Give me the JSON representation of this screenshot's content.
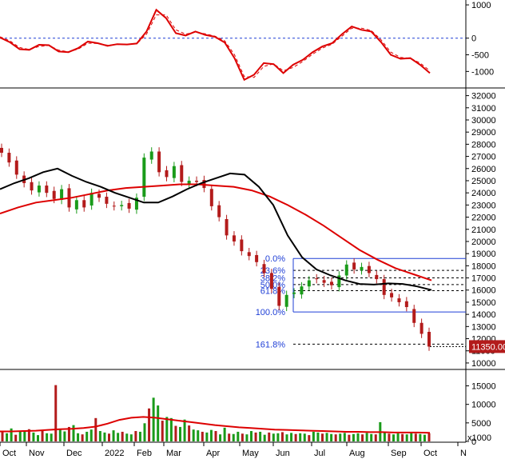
{
  "chart_data": [
    {
      "panel": "oscillator",
      "type": "line",
      "y_ticks": [
        1000,
        0,
        -500,
        -1000
      ],
      "y_tick_labels": [
        "1000",
        "0",
        "-500",
        "-1000"
      ],
      "ylim": [
        -1400,
        1050
      ],
      "zero_line": 0,
      "series": [
        {
          "color": "#dd0000",
          "values": [
            20,
            -120,
            -330,
            -350,
            -200,
            -210,
            -400,
            -420,
            -300,
            -100,
            -150,
            -230,
            -180,
            -190,
            -160,
            200,
            850,
            600,
            150,
            80,
            200,
            100,
            40,
            -130,
            -600,
            -1250,
            -1100,
            -750,
            -780,
            -1050,
            -800,
            -650,
            -420,
            -250,
            -150,
            120,
            350,
            250,
            200,
            -120,
            -500,
            -620,
            -600,
            -800,
            -1050
          ]
        },
        {
          "color": "#dd0000",
          "dashed": true,
          "values": [
            40,
            -80,
            -280,
            -340,
            -250,
            -220,
            -360,
            -410,
            -330,
            -150,
            -160,
            -210,
            -190,
            -190,
            -170,
            120,
            700,
            700,
            250,
            120,
            180,
            130,
            60,
            -80,
            -500,
            -1150,
            -1180,
            -850,
            -770,
            -980,
            -880,
            -700,
            -480,
            -300,
            -180,
            60,
            300,
            300,
            230,
            -50,
            -420,
            -580,
            -600,
            -750,
            -980
          ]
        }
      ]
    },
    {
      "panel": "price",
      "type": "line",
      "y_ticks": [
        32000,
        31000,
        30000,
        29000,
        28000,
        27000,
        26000,
        25000,
        24000,
        23000,
        22000,
        21000,
        20000,
        19000,
        18000,
        17000,
        16000,
        15000,
        14000,
        13000,
        12000,
        11000,
        10000
      ],
      "y_tick_labels": [
        "32000",
        "31000",
        "30000",
        "29000",
        "28000",
        "27000",
        "26000",
        "25000",
        "24000",
        "23000",
        "22000",
        "21000",
        "20000",
        "19000",
        "18000",
        "17000",
        "16000",
        "15000",
        "14000",
        "13000",
        "12000",
        "11000",
        "10000"
      ],
      "ylim": [
        9600,
        32500
      ],
      "last_price": 11350,
      "last_price_label": "11350.00",
      "fibonacci": {
        "levels": [
          {
            "label": "0.0%",
            "value": 18600
          },
          {
            "label": "23.6%",
            "value": 17620
          },
          {
            "label": "38.2%",
            "value": 17000
          },
          {
            "label": "50.0%",
            "value": 16450
          },
          {
            "label": "61.8%",
            "value": 15950
          },
          {
            "label": "100.0%",
            "value": 14200
          },
          {
            "label": "161.8%",
            "value": 11550
          }
        ]
      },
      "series": [
        {
          "color": "#8a8a00",
          "type": "candles",
          "values": [
            27300,
            26500,
            25500,
            24800,
            24200,
            24600,
            24000,
            23500,
            24300,
            22800,
            23400,
            22800,
            24000,
            23600,
            23100,
            22900,
            23000,
            22700,
            23600,
            26900,
            27400,
            25700,
            25300,
            26200,
            24900,
            25000,
            24900,
            24400,
            22900,
            22000,
            20500,
            20000,
            19200,
            18800,
            18300,
            17400,
            16100,
            14700,
            15600,
            15800,
            16300,
            16800,
            16900,
            16600,
            16400,
            17200,
            18100,
            17700,
            17900,
            17400,
            16900,
            15600,
            15400,
            15000,
            14600,
            13300,
            12400,
            11350
          ]
        },
        {
          "color": "#000000",
          "values": [
            24300,
            24800,
            25200,
            25700,
            26000,
            25400,
            24900,
            24500,
            24000,
            23600,
            23200,
            23200,
            23700,
            24300,
            24800,
            25200,
            25600,
            25500,
            24500,
            23000,
            20500,
            18700,
            17700,
            17200,
            16800,
            16500,
            16450,
            16550,
            16500,
            16300,
            16000
          ]
        },
        {
          "color": "#dd0000",
          "values": [
            22300,
            22800,
            23200,
            23400,
            23600,
            23900,
            24200,
            24400,
            24500,
            24600,
            24700,
            24700,
            24600,
            24500,
            24200,
            23700,
            23000,
            22200,
            21300,
            20300,
            19300,
            18500,
            17800,
            17300,
            16800
          ]
        }
      ]
    },
    {
      "panel": "volume",
      "type": "bar",
      "y_ticks": [
        15000,
        10000,
        5000,
        0
      ],
      "y_tick_labels": [
        "15000",
        "10000",
        "5000",
        "0"
      ],
      "ylim": [
        0,
        19000
      ],
      "unit_label": "x1000",
      "values": [
        2800,
        2200,
        3500,
        1800,
        2600,
        2900,
        3300,
        2400,
        1700,
        3100,
        2200,
        2100,
        15200,
        3400,
        2700,
        3900,
        4400,
        2200,
        1900,
        2600,
        3200,
        6300,
        2800,
        2400,
        2100,
        3000,
        2300,
        2600,
        2100,
        1900,
        2800,
        2600,
        4900,
        8900,
        11800,
        9700,
        5600,
        6600,
        6300,
        4200,
        3900,
        5900,
        4300,
        3200,
        3000,
        2600,
        2400,
        3100,
        2800,
        1900,
        3700,
        2100,
        2000,
        2600,
        2100,
        1900,
        2800,
        2400,
        2600,
        1800,
        2400,
        2100,
        2200,
        2500,
        1900,
        2300,
        2000,
        2200,
        2100,
        1700,
        2600,
        2400,
        2100,
        2300,
        2000,
        1900,
        2100,
        2300,
        1800,
        2000,
        2200,
        1900,
        2300,
        2000,
        1900,
        5200,
        2400,
        2100,
        1900,
        2200,
        2000,
        1900,
        2300,
        2100,
        2000,
        1800,
        2200
      ],
      "ma_color": "#dd0000",
      "ma_values": [
        2700,
        2700,
        2800,
        2900,
        3100,
        3300,
        3400,
        3600,
        4000,
        4800,
        5800,
        6400,
        6600,
        6400,
        6000,
        5600,
        5200,
        4800,
        4400,
        4100,
        3800,
        3600,
        3400,
        3200,
        3100,
        3000,
        2900,
        2800,
        2700,
        2600,
        2600,
        2500,
        2500,
        2400,
        2400,
        2400,
        2300
      ]
    }
  ],
  "x_axis": {
    "labels": [
      "Oct",
      "Nov",
      "Dec",
      "2022",
      "Feb",
      "Mar",
      "Apr",
      "May",
      "Jun",
      "Jul",
      "Aug",
      "Sep",
      "Oct",
      "N"
    ]
  }
}
